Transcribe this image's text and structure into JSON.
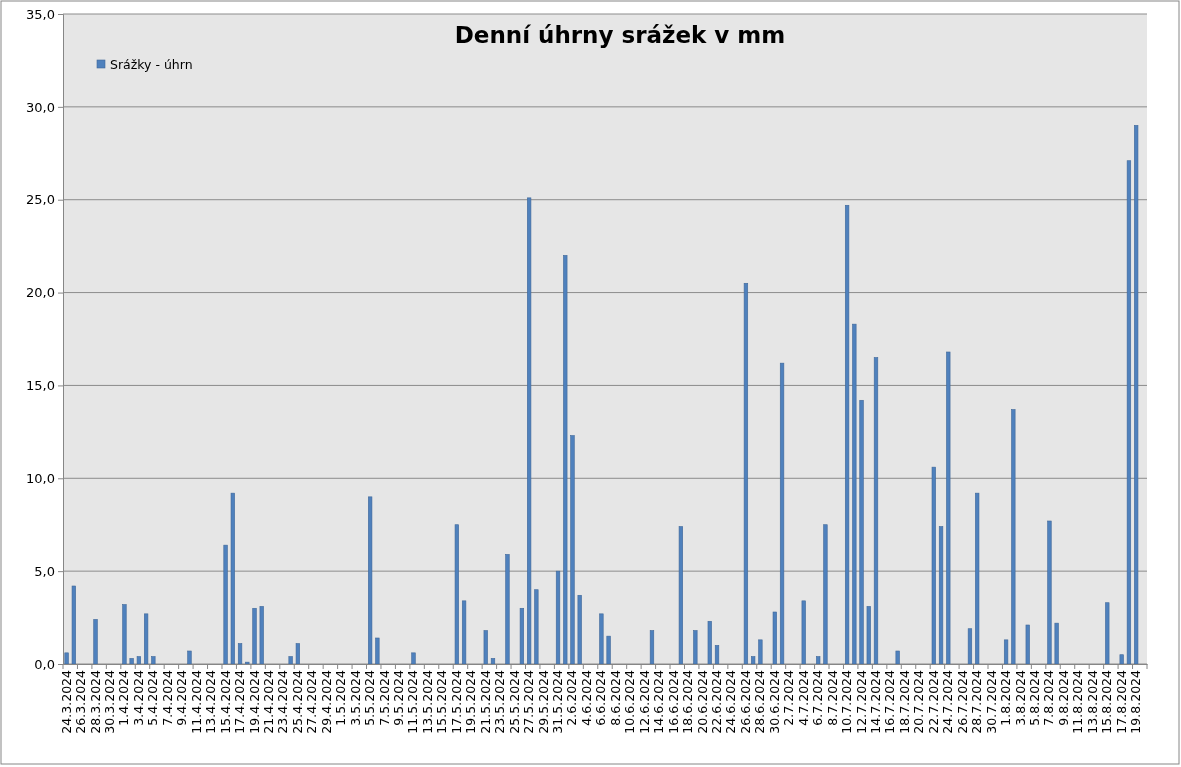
{
  "chart_data": {
    "type": "bar",
    "title": "Denní úhrny srážek v mm",
    "categories": [
      "24.3.2024",
      null,
      "26.3.2024",
      null,
      "28.3.2024",
      null,
      "30.3.2024",
      null,
      "1.4.2024",
      null,
      "3.4.2024",
      null,
      "5.4.2024",
      null,
      "7.4.2024",
      null,
      "9.4.2024",
      null,
      "11.4.2024",
      null,
      "13.4.2024",
      null,
      "15.4.2024",
      null,
      "17.4.2024",
      null,
      "19.4.2024",
      null,
      "21.4.2024",
      null,
      "23.4.2024",
      null,
      "25.4.2024",
      null,
      "27.4.2024",
      null,
      "29.4.2024",
      null,
      "1.5.2024",
      null,
      "3.5.2024",
      null,
      "5.5.2024",
      null,
      "7.5.2024",
      null,
      "9.5.2024",
      null,
      "11.5.2024",
      null,
      "13.5.2024",
      null,
      "15.5.2024",
      null,
      "17.5.2024",
      null,
      "19.5.2024",
      null,
      "21.5.2024",
      null,
      "23.5.2024",
      null,
      "25.5.2024",
      null,
      "27.5.2024",
      null,
      "29.5.2024",
      null,
      "31.5.2024",
      null,
      "2.6.2024",
      null,
      "4.6.2024",
      null,
      "6.6.2024",
      null,
      "8.6.2024",
      null,
      "10.6.2024",
      null,
      "12.6.2024",
      null,
      "14.6.2024",
      null,
      "16.6.2024",
      null,
      "18.6.2024",
      null,
      "20.6.2024",
      null,
      "22.6.2024",
      null,
      "24.6.2024",
      null,
      "26.6.2024",
      null,
      "28.6.2024",
      null,
      "30.6.2024",
      null,
      "2.7.2024",
      null,
      "4.7.2024",
      null,
      "6.7.2024",
      null,
      "8.7.2024",
      null,
      "10.7.2024",
      null,
      "12.7.2024",
      null,
      "14.7.2024",
      null,
      "16.7.2024",
      null,
      "18.7.2024",
      null,
      "20.7.2024",
      null,
      "22.7.2024",
      null,
      "24.7.2024",
      null,
      "26.7.2024",
      null,
      "28.7.2024",
      null,
      "30.7.2024",
      null,
      "1.8.2024",
      null,
      "3.8.2024",
      null,
      "5.8.2024",
      null,
      "7.8.2024",
      null,
      "9.8.2024",
      null,
      "11.8.2024",
      null,
      "13.8.2024",
      null,
      "15.8.2024",
      null,
      "17.8.2024",
      null,
      "19.8.2024",
      null
    ],
    "series": [
      {
        "name": "Srážky - úhrn",
        "color": "#4f81bd",
        "values": [
          0.6,
          4.2,
          0,
          0,
          2.4,
          0,
          0,
          0,
          3.2,
          0.3,
          0.4,
          2.7,
          0.4,
          0,
          0,
          0,
          0,
          0.7,
          0,
          0,
          0,
          0,
          6.4,
          9.2,
          1.1,
          0.1,
          3.0,
          3.1,
          0,
          0,
          0,
          0.4,
          1.1,
          0,
          0,
          0,
          0,
          0,
          0,
          0,
          0,
          0,
          9.0,
          1.4,
          0,
          0,
          0,
          0,
          0.6,
          0,
          0,
          0,
          0,
          0,
          7.5,
          3.4,
          0,
          0,
          1.8,
          0.3,
          0,
          5.9,
          0,
          3.0,
          25.1,
          4.0,
          0,
          0,
          5.0,
          22.0,
          12.3,
          3.7,
          0,
          0,
          2.7,
          1.5,
          0,
          0,
          0,
          0,
          0,
          1.8,
          0,
          0,
          0,
          7.4,
          0,
          1.8,
          0,
          2.3,
          1.0,
          0,
          0,
          0,
          20.5,
          0.4,
          1.3,
          0,
          2.8,
          16.2,
          0,
          0,
          3.4,
          0,
          0.4,
          7.5,
          0,
          0,
          24.7,
          18.3,
          14.2,
          3.1,
          16.5,
          0,
          0,
          0.7,
          0,
          0,
          0,
          0,
          10.6,
          7.4,
          16.8,
          0,
          0,
          1.9,
          9.2,
          0,
          0,
          0,
          1.3,
          13.7,
          0,
          2.1,
          0,
          0,
          7.7,
          2.2,
          0,
          0,
          0,
          0,
          0,
          0,
          3.3,
          0,
          0.5,
          27.1,
          29.0,
          0
        ]
      }
    ],
    "ylim": [
      0,
      35
    ],
    "yticks": [
      {
        "value": 0,
        "label": "0,0"
      },
      {
        "value": 5,
        "label": "5,0"
      },
      {
        "value": 10,
        "label": "10,0"
      },
      {
        "value": 15,
        "label": "15,0"
      },
      {
        "value": 20,
        "label": "20,0"
      },
      {
        "value": 25,
        "label": "25,0"
      },
      {
        "value": 30,
        "label": "30,0"
      },
      {
        "value": 35,
        "label": "35,0"
      }
    ],
    "grid": "y",
    "legend": "top left"
  }
}
